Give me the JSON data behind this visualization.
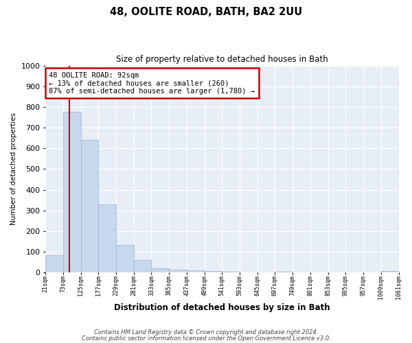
{
  "title": "48, OOLITE ROAD, BATH, BA2 2UU",
  "subtitle": "Size of property relative to detached houses in Bath",
  "xlabel": "Distribution of detached houses by size in Bath",
  "ylabel": "Number of detached properties",
  "bar_color": "#c8d8ec",
  "bar_edge_color": "#9ab5d0",
  "background_color": "#ffffff",
  "plot_bg_color": "#e8eef6",
  "grid_color": "#ffffff",
  "red_line_x": 92,
  "annotation_text": "48 OOLITE ROAD: 92sqm\n← 13% of detached houses are smaller (260)\n87% of semi-detached houses are larger (1,780) →",
  "annotation_box_color": "#ffffff",
  "annotation_box_edge": "#cc0000",
  "red_line_color": "#cc0000",
  "ylim": [
    0,
    1000
  ],
  "yticks": [
    0,
    100,
    200,
    300,
    400,
    500,
    600,
    700,
    800,
    900,
    1000
  ],
  "bin_edges": [
    21,
    73,
    125,
    177,
    229,
    281,
    333,
    385,
    437,
    489,
    541,
    593,
    645,
    697,
    749,
    801,
    853,
    905,
    957,
    1009,
    1061
  ],
  "bar_heights": [
    83,
    775,
    640,
    330,
    135,
    60,
    22,
    15,
    10,
    7,
    5,
    0,
    0,
    5,
    0,
    0,
    0,
    0,
    0,
    7
  ],
  "footnote1": "Contains HM Land Registry data © Crown copyright and database right 2024.",
  "footnote2": "Contains public sector information licensed under the Open Government Licence v3.0."
}
